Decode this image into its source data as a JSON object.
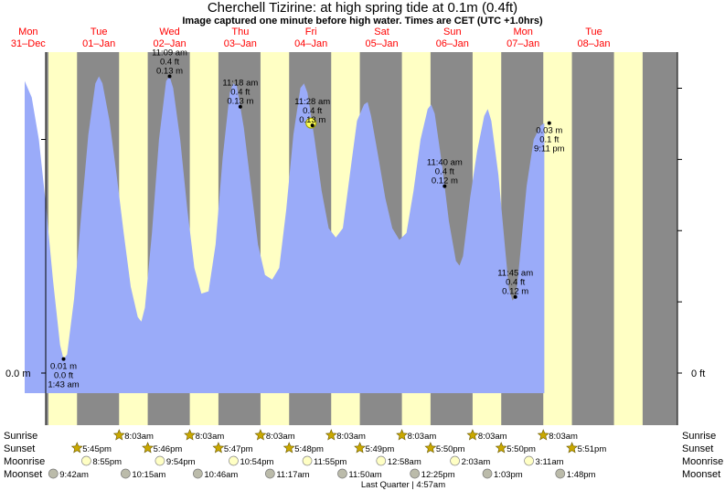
{
  "title": "Cherchell Tizirine: at high  spring tide at 0.1m (0.4ft)",
  "subtitle": "Image captured one minute before high water. Times are CET (UTC +1.0hrs)",
  "colors": {
    "night": "#8a8a8a",
    "day": "#ffffc4",
    "water": "#9aabf9",
    "day_labels": "#ff0000",
    "sun_icon": "#c9a800",
    "moon_icon": "#ffffc4",
    "moonset_icon": "#bbbbaa"
  },
  "days": [
    {
      "name": "Mon",
      "date": "31–Dec"
    },
    {
      "name": "Tue",
      "date": "01–Jan"
    },
    {
      "name": "Wed",
      "date": "02–Jan"
    },
    {
      "name": "Thu",
      "date": "03–Jan"
    },
    {
      "name": "Fri",
      "date": "04–Jan"
    },
    {
      "name": "Sat",
      "date": "05–Jan"
    },
    {
      "name": "Sun",
      "date": "06–Jan"
    },
    {
      "name": "Mon",
      "date": "07–Jan"
    },
    {
      "name": "Tue",
      "date": "08–Jan"
    }
  ],
  "axis": {
    "left_zero": "0.0 m",
    "right_zero": "0 ft"
  },
  "chart_data": {
    "type": "area",
    "x_unit": "days from Mon 31-Dec 00:00 CET",
    "y_unit": "m",
    "ylim": [
      -0.01,
      0.16
    ],
    "series": [
      {
        "values": [
          [
            0.0,
            0.125
          ],
          [
            0.1,
            0.118
          ],
          [
            0.2,
            0.1
          ],
          [
            0.3,
            0.072
          ],
          [
            0.4,
            0.04
          ],
          [
            0.5,
            0.012
          ],
          [
            0.55,
            0.006
          ],
          [
            0.6,
            0.008
          ],
          [
            0.7,
            0.032
          ],
          [
            0.8,
            0.068
          ],
          [
            0.9,
            0.102
          ],
          [
            1.0,
            0.124
          ],
          [
            1.05,
            0.127
          ],
          [
            1.1,
            0.124
          ],
          [
            1.2,
            0.108
          ],
          [
            1.3,
            0.085
          ],
          [
            1.4,
            0.06
          ],
          [
            1.5,
            0.037
          ],
          [
            1.6,
            0.024
          ],
          [
            1.65,
            0.022
          ],
          [
            1.7,
            0.028
          ],
          [
            1.8,
            0.06
          ],
          [
            1.9,
            0.1
          ],
          [
            2.0,
            0.125
          ],
          [
            2.05,
            0.127
          ],
          [
            2.1,
            0.122
          ],
          [
            2.2,
            0.1
          ],
          [
            2.3,
            0.07
          ],
          [
            2.4,
            0.045
          ],
          [
            2.5,
            0.034
          ],
          [
            2.6,
            0.035
          ],
          [
            2.7,
            0.055
          ],
          [
            2.8,
            0.092
          ],
          [
            2.9,
            0.12
          ],
          [
            2.95,
            0.124
          ],
          [
            3.0,
            0.123
          ],
          [
            3.1,
            0.105
          ],
          [
            3.2,
            0.08
          ],
          [
            3.3,
            0.055
          ],
          [
            3.4,
            0.042
          ],
          [
            3.5,
            0.04
          ],
          [
            3.6,
            0.045
          ],
          [
            3.7,
            0.07
          ],
          [
            3.8,
            0.102
          ],
          [
            3.9,
            0.122
          ],
          [
            3.95,
            0.124
          ],
          [
            4.0,
            0.12
          ],
          [
            4.1,
            0.1
          ],
          [
            4.2,
            0.078
          ],
          [
            4.3,
            0.062
          ],
          [
            4.4,
            0.058
          ],
          [
            4.5,
            0.062
          ],
          [
            4.6,
            0.085
          ],
          [
            4.7,
            0.108
          ],
          [
            4.8,
            0.115
          ],
          [
            4.85,
            0.116
          ],
          [
            4.9,
            0.11
          ],
          [
            5.0,
            0.093
          ],
          [
            5.1,
            0.075
          ],
          [
            5.2,
            0.062
          ],
          [
            5.3,
            0.057
          ],
          [
            5.4,
            0.06
          ],
          [
            5.5,
            0.078
          ],
          [
            5.6,
            0.1
          ],
          [
            5.7,
            0.113
          ],
          [
            5.75,
            0.115
          ],
          [
            5.8,
            0.111
          ],
          [
            5.9,
            0.09
          ],
          [
            6.0,
            0.065
          ],
          [
            6.1,
            0.048
          ],
          [
            6.15,
            0.046
          ],
          [
            6.2,
            0.05
          ],
          [
            6.3,
            0.075
          ],
          [
            6.4,
            0.095
          ],
          [
            6.5,
            0.11
          ],
          [
            6.55,
            0.113
          ],
          [
            6.6,
            0.108
          ],
          [
            6.7,
            0.085
          ],
          [
            6.8,
            0.052
          ],
          [
            6.85,
            0.036
          ],
          [
            6.9,
            0.031
          ],
          [
            6.95,
            0.033
          ],
          [
            7.0,
            0.048
          ],
          [
            7.1,
            0.08
          ],
          [
            7.2,
            0.1
          ],
          [
            7.3,
            0.106
          ],
          [
            7.35,
            0.107
          ]
        ]
      }
    ],
    "extrema": [
      {
        "x": 0.55,
        "m": "0.01 m",
        "ft": "0.0 ft",
        "time": "1:43 am",
        "kind": "low"
      },
      {
        "x": 2.05,
        "m": "0.13 m",
        "ft": "0.4 ft",
        "time": "11:09 am",
        "kind": "high"
      },
      {
        "x": 3.05,
        "m": "0.13 m",
        "ft": "0.4 ft",
        "time": "11:18 am",
        "kind": "high"
      },
      {
        "x": 4.07,
        "m": "0.13 m",
        "ft": "0.4 ft",
        "time": "11:28 am",
        "kind": "high"
      },
      {
        "x": 5.94,
        "m": "0.12 m",
        "ft": "0.4 ft",
        "time": "11:40 am",
        "kind": "high"
      },
      {
        "x": 6.94,
        "m": "0.12 m",
        "ft": "0.4 ft",
        "time": "11:45 am",
        "kind": "high"
      },
      {
        "x": 7.42,
        "m": "0.03 m",
        "ft": "0.1 ft",
        "time": "9:11 pm",
        "kind": "low"
      }
    ],
    "current_marker": {
      "x": 4.05,
      "y": 0.107
    }
  },
  "rows": {
    "sunrise": "Sunrise",
    "sunset": "Sunset",
    "moonrise": "Moonrise",
    "moonset": "Moonset"
  },
  "sunrise": [
    "8:03am",
    "8:03am",
    "8:03am",
    "8:03am",
    "8:03am",
    "8:03am",
    "8:03am"
  ],
  "sunset": [
    "5:45pm",
    "5:46pm",
    "5:47pm",
    "5:48pm",
    "5:49pm",
    "5:50pm",
    "5:50pm",
    "5:51pm"
  ],
  "moonrise": [
    "8:55pm",
    "9:54pm",
    "10:54pm",
    "11:55pm",
    "12:58am",
    "2:03am",
    "3:11am"
  ],
  "moonset": [
    "9:42am",
    "10:15am",
    "10:46am",
    "11:17am",
    "11:50am",
    "12:25pm",
    "1:03pm",
    "1:48pm"
  ],
  "footer": "Last Quarter | 4:57am"
}
